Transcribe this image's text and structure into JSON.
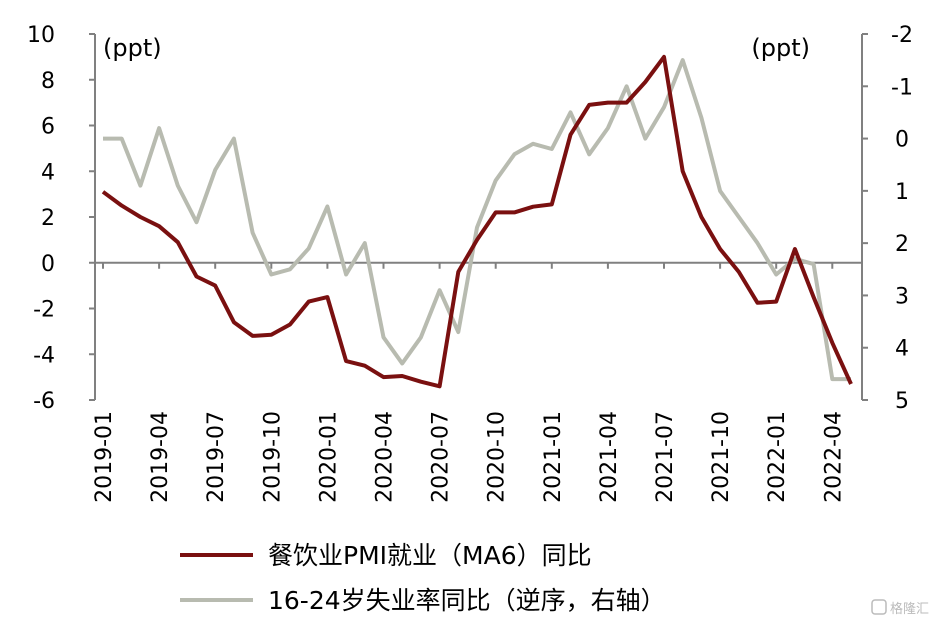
{
  "chart_data": {
    "type": "line",
    "title": "",
    "left_unit": "(ppt)",
    "right_unit": "(ppt)",
    "left_ylim": [
      -6,
      10
    ],
    "left_yticks": [
      "10",
      "8",
      "6",
      "4",
      "2",
      "0",
      "-2",
      "-4",
      "-6"
    ],
    "right_ylim_inverted": [
      -2,
      5
    ],
    "right_yticks": [
      "-2",
      "-1",
      "0",
      "1",
      "2",
      "3",
      "4",
      "5"
    ],
    "x_tick_labels": [
      "2019-01",
      "2019-04",
      "2019-07",
      "2019-10",
      "2020-01",
      "2020-04",
      "2020-07",
      "2020-10",
      "2021-01",
      "2021-04",
      "2021-07",
      "2021-10",
      "2022-01",
      "2022-04"
    ],
    "x": [
      "2019-01",
      "2019-02",
      "2019-03",
      "2019-04",
      "2019-05",
      "2019-06",
      "2019-07",
      "2019-08",
      "2019-09",
      "2019-10",
      "2019-11",
      "2019-12",
      "2020-01",
      "2020-02",
      "2020-03",
      "2020-04",
      "2020-05",
      "2020-06",
      "2020-07",
      "2020-08",
      "2020-09",
      "2020-10",
      "2020-11",
      "2020-12",
      "2021-01",
      "2021-02",
      "2021-03",
      "2021-04",
      "2021-05",
      "2021-06",
      "2021-07",
      "2021-08",
      "2021-09",
      "2021-10",
      "2021-11",
      "2021-12",
      "2022-01",
      "2022-02",
      "2022-03",
      "2022-04",
      "2022-05"
    ],
    "series": [
      {
        "name": "餐饮业PMI就业（MA6）同比",
        "axis": "left",
        "color": "#7a1010",
        "values": [
          3.1,
          2.5,
          2.0,
          1.6,
          0.9,
          -0.6,
          -1.0,
          -2.6,
          -3.2,
          -3.15,
          -2.7,
          -1.7,
          -1.5,
          -4.3,
          -4.5,
          -5.0,
          -4.95,
          -5.2,
          -5.4,
          -0.4,
          1.0,
          2.2,
          2.2,
          2.45,
          2.55,
          5.6,
          6.9,
          7.0,
          7.0,
          7.9,
          9.0,
          4.0,
          2.0,
          0.6,
          -0.4,
          -1.75,
          -1.7,
          0.6,
          -1.5,
          -3.5,
          -5.3
        ]
      },
      {
        "name": "16-24岁失业率同比（逆序，右轴）",
        "axis": "right",
        "color": "#b8bbb0",
        "values": [
          0.0,
          0.0,
          0.9,
          -0.2,
          0.9,
          1.6,
          0.6,
          0.0,
          1.8,
          2.6,
          2.5,
          2.1,
          1.3,
          2.6,
          2.0,
          3.8,
          4.3,
          3.8,
          2.9,
          3.7,
          1.7,
          0.8,
          0.3,
          0.1,
          0.2,
          -0.5,
          0.3,
          -0.2,
          -1.0,
          0.0,
          -0.6,
          -1.5,
          -0.4,
          1.0,
          1.5,
          2.0,
          2.6,
          2.3,
          2.4,
          4.6,
          4.6
        ]
      }
    ],
    "legend_position": "bottom",
    "grid": false,
    "watermark": "格隆汇"
  }
}
